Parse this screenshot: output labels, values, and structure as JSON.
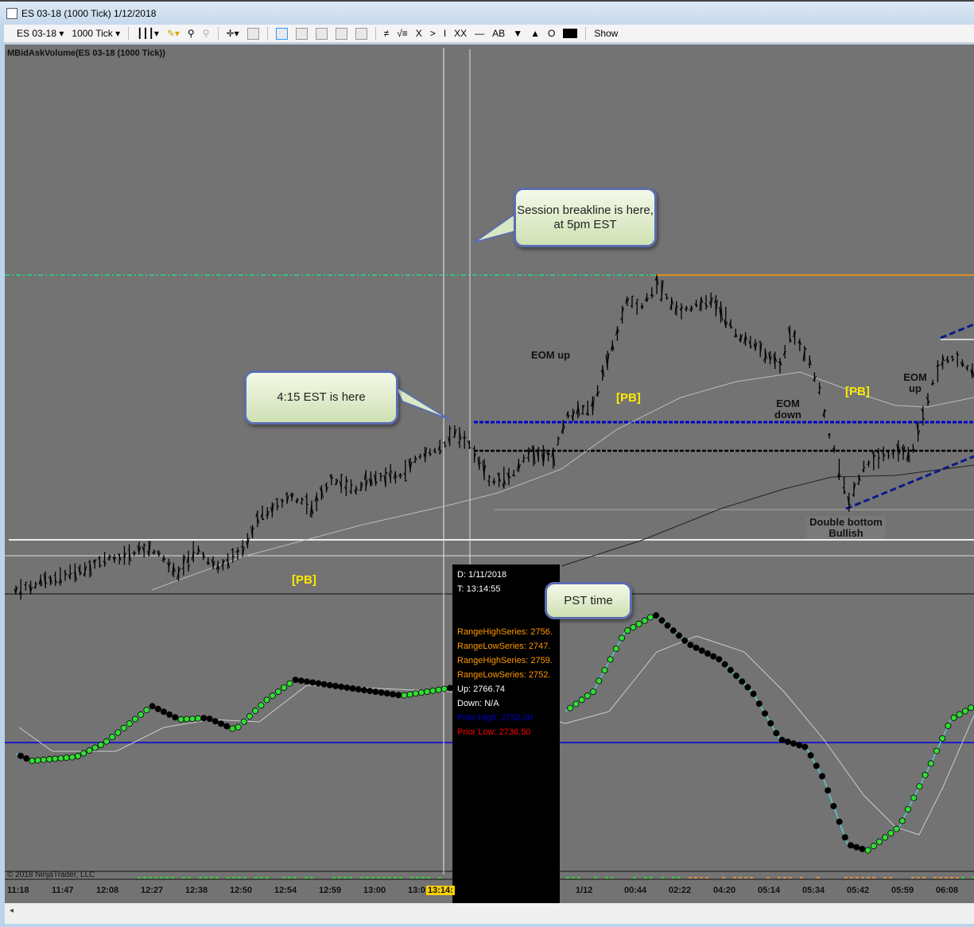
{
  "window": {
    "title": "ES 03-18 (1000 Tick)  1/12/2018"
  },
  "toolbar": {
    "instrument": "ES 03-18",
    "interval": "1000 Tick",
    "items": [
      "≠",
      "√≡",
      "X",
      ">",
      "I",
      "XX",
      "—",
      "AB",
      "▼",
      "▲",
      "O"
    ],
    "show": "Show"
  },
  "chart": {
    "title": "MBidAskVolume(ES 03-18 (1000 Tick))",
    "copyright": "© 2018 NinjaTrader, LLC",
    "labels": {
      "eom_up_1": "EOM up",
      "eom_down": "EOM down",
      "eom_up_2": "EOM up",
      "double_bottom": "Double bottom Bullish",
      "pb": "[PB]"
    },
    "callouts": {
      "session": "Session breakline is here, at 5pm EST",
      "est": "4:15 EST is here",
      "pst": "PST time"
    },
    "colors": {
      "background": "#737373",
      "up_dot": "#33dd33",
      "down_dot": "#000000",
      "prior_high": "#0000cc",
      "prior_low": "#ff0000",
      "range": "#ff9900"
    }
  },
  "tooltip": {
    "date": "D: 1/11/2018",
    "time": "T: 13:14:55",
    "lines": [
      {
        "text": "RangeHighSeries: 2756.",
        "color": "#ff9900"
      },
      {
        "text": "RangeLowSeries: 2747.",
        "color": "#ff9900"
      },
      {
        "text": "RangeHighSeries: 2759.",
        "color": "#ff9900"
      },
      {
        "text": "RangeLowSeries: 2752.",
        "color": "#ff9900"
      },
      {
        "text": "Up: 2766.74",
        "color": "#ffffff"
      },
      {
        "text": "Down: N/A",
        "color": "#ffffff"
      },
      {
        "text": "Prior High: 2752.00",
        "color": "#0000cc"
      },
      {
        "text": "Prior Low: 2736.50",
        "color": "#ff0000"
      }
    ]
  },
  "axis": {
    "ticks": [
      "11:18",
      "11:47",
      "12:08",
      "12:27",
      "12:38",
      "12:50",
      "12:54",
      "12:59",
      "13:00",
      "13:0",
      "13:14:",
      "1/12",
      "00:44",
      "02:22",
      "04:20",
      "05:14",
      "05:34",
      "05:42",
      "05:59",
      "06:08"
    ]
  },
  "scrollbar": {
    "arrow": "◂"
  }
}
